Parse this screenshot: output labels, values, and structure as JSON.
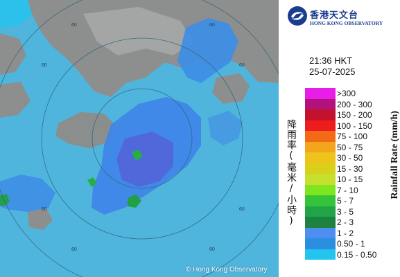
{
  "map": {
    "copyright": "© Hong Kong Observatory",
    "range_ring_labels": [
      "60",
      "60",
      "60",
      "60",
      "60",
      "60",
      "60",
      "60"
    ]
  },
  "logo": {
    "cn": "香港天文台",
    "en": "HONG KONG OBSERVATORY"
  },
  "timestamp": {
    "time": "21:36 HKT",
    "date": "25-07-2025"
  },
  "legend": {
    "title_cn": "降雨率(毫米/小時)",
    "title_en": "Rainfall Rate (mm/h)",
    "items": [
      {
        "label": ">300",
        "color": "#e81ee8"
      },
      {
        "label": "200 - 300",
        "color": "#b3127a"
      },
      {
        "label": "150 - 200",
        "color": "#c4122e"
      },
      {
        "label": "100 - 150",
        "color": "#ee1c1c"
      },
      {
        "label": "75 - 100",
        "color": "#f26a16"
      },
      {
        "label": "50 - 75",
        "color": "#f3a51b"
      },
      {
        "label": "30 - 50",
        "color": "#eec31a"
      },
      {
        "label": "15 - 30",
        "color": "#d9d01a"
      },
      {
        "label": "10 - 15",
        "color": "#c7df2e"
      },
      {
        "label": "7 - 10",
        "color": "#7de61f"
      },
      {
        "label": "5 - 7",
        "color": "#33c43a"
      },
      {
        "label": "3 - 5",
        "color": "#21a347"
      },
      {
        "label": "2 - 3",
        "color": "#1d8240"
      },
      {
        "label": "1 - 2",
        "color": "#4f8ef0"
      },
      {
        "label": "0.50 - 1",
        "color": "#2a8fe0"
      },
      {
        "label": "0.15 - 0.50",
        "color": "#23c4ee"
      }
    ]
  }
}
